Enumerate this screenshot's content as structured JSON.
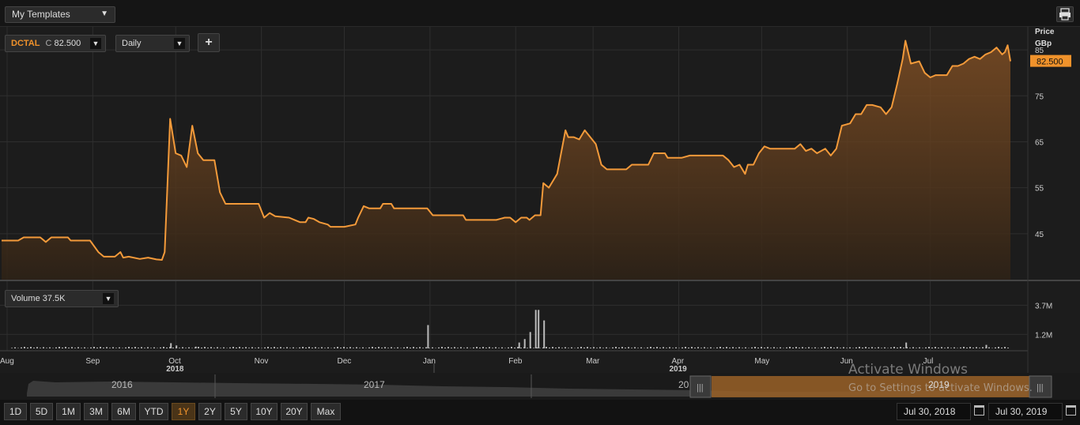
{
  "toolbar": {
    "templates_label": "My Templates",
    "symbol": "DCTAL",
    "last_prefix": "C",
    "last_value": "82.500",
    "interval": "Daily",
    "add_label": "+"
  },
  "volume_panel": {
    "label": "Volume",
    "value": "37.5K"
  },
  "colors": {
    "accent": "#f0922b",
    "line": "#f39a3a",
    "background": "#1c1c1c",
    "grid": "#2e2e2e",
    "volume_bar": "#bbbbbb"
  },
  "icons": {
    "print": "printer-icon",
    "calendar": "calendar-icon",
    "caret": "caret-down-icon",
    "grip": "grip-icon"
  },
  "range_buttons": [
    "1D",
    "5D",
    "1M",
    "3M",
    "6M",
    "YTD",
    "1Y",
    "2Y",
    "5Y",
    "10Y",
    "20Y",
    "Max"
  ],
  "active_range": "1Y",
  "date_from": "Jul 30, 2018",
  "date_to": "Jul 30, 2019",
  "navigator_years": [
    "2016",
    "2017",
    "20",
    "2019"
  ],
  "watermark": {
    "line1": "Activate Windows",
    "line2": "Go to Settings to activate Windows."
  },
  "chart_data": {
    "type": "line",
    "price_axis_title": "Price",
    "price_axis_unit": "GBp",
    "y_ticks": [
      45,
      55,
      65,
      75,
      85
    ],
    "ylim": [
      35,
      90
    ],
    "current_price_label": "82.500",
    "current_price": 82.5,
    "x_start": "2018-07-30",
    "x_end": "2019-07-30",
    "month_ticks": [
      {
        "label": "Aug",
        "date": "2018-08-01"
      },
      {
        "label": "Sep",
        "date": "2018-09-01"
      },
      {
        "label": "Oct",
        "date": "2018-10-01",
        "year": "2018"
      },
      {
        "label": "Nov",
        "date": "2018-11-01"
      },
      {
        "label": "Dec",
        "date": "2018-12-01"
      },
      {
        "label": "Jan",
        "date": "2019-01-01"
      },
      {
        "label": "Feb",
        "date": "2019-02-01"
      },
      {
        "label": "Mar",
        "date": "2019-03-01"
      },
      {
        "label": "Apr",
        "date": "2019-04-01",
        "year": "2019"
      },
      {
        "label": "May",
        "date": "2019-05-01"
      },
      {
        "label": "Jun",
        "date": "2019-06-01"
      },
      {
        "label": "Jul",
        "date": "2019-07-01"
      }
    ],
    "series": [
      {
        "points": [
          [
            "2018-07-30",
            43.5
          ],
          [
            "2018-08-05",
            43.5
          ],
          [
            "2018-08-07",
            44.2
          ],
          [
            "2018-08-13",
            44.2
          ],
          [
            "2018-08-15",
            43.2
          ],
          [
            "2018-08-17",
            44.2
          ],
          [
            "2018-08-23",
            44.2
          ],
          [
            "2018-08-24",
            43.5
          ],
          [
            "2018-08-31",
            43.5
          ],
          [
            "2018-09-03",
            41.0
          ],
          [
            "2018-09-05",
            40.0
          ],
          [
            "2018-09-09",
            40.0
          ],
          [
            "2018-09-11",
            41.0
          ],
          [
            "2018-09-12",
            39.8
          ],
          [
            "2018-09-14",
            40.0
          ],
          [
            "2018-09-18",
            39.5
          ],
          [
            "2018-09-21",
            39.8
          ],
          [
            "2018-09-24",
            39.4
          ],
          [
            "2018-09-26",
            39.3
          ],
          [
            "2018-09-27",
            41.0
          ],
          [
            "2018-09-29",
            70.0
          ],
          [
            "2018-10-01",
            62.5
          ],
          [
            "2018-10-03",
            62.0
          ],
          [
            "2018-10-05",
            59.5
          ],
          [
            "2018-10-07",
            68.5
          ],
          [
            "2018-10-09",
            62.5
          ],
          [
            "2018-10-11",
            61.0
          ],
          [
            "2018-10-15",
            61.0
          ],
          [
            "2018-10-17",
            54.0
          ],
          [
            "2018-10-19",
            51.5
          ],
          [
            "2018-10-31",
            51.5
          ],
          [
            "2018-11-02",
            48.5
          ],
          [
            "2018-11-04",
            49.5
          ],
          [
            "2018-11-06",
            48.8
          ],
          [
            "2018-11-11",
            48.5
          ],
          [
            "2018-11-13",
            48.0
          ],
          [
            "2018-11-15",
            47.5
          ],
          [
            "2018-11-17",
            47.5
          ],
          [
            "2018-11-18",
            48.5
          ],
          [
            "2018-11-20",
            48.2
          ],
          [
            "2018-11-22",
            47.5
          ],
          [
            "2018-11-25",
            47.0
          ],
          [
            "2018-11-26",
            46.5
          ],
          [
            "2018-12-01",
            46.5
          ],
          [
            "2018-12-05",
            47.0
          ],
          [
            "2018-12-06",
            48.5
          ],
          [
            "2018-12-08",
            51.0
          ],
          [
            "2018-12-10",
            50.5
          ],
          [
            "2018-12-14",
            50.5
          ],
          [
            "2018-12-15",
            51.5
          ],
          [
            "2018-12-18",
            51.5
          ],
          [
            "2018-12-19",
            50.5
          ],
          [
            "2018-12-31",
            50.5
          ],
          [
            "2019-01-02",
            49.0
          ],
          [
            "2019-01-13",
            49.0
          ],
          [
            "2019-01-14",
            48.0
          ],
          [
            "2019-01-25",
            48.0
          ],
          [
            "2019-01-28",
            48.5
          ],
          [
            "2019-01-30",
            48.5
          ],
          [
            "2019-02-01",
            47.5
          ],
          [
            "2019-02-03",
            48.5
          ],
          [
            "2019-02-05",
            48.5
          ],
          [
            "2019-02-06",
            48.0
          ],
          [
            "2019-02-08",
            49.0
          ],
          [
            "2019-02-10",
            49.0
          ],
          [
            "2019-02-11",
            56.0
          ],
          [
            "2019-02-13",
            55.0
          ],
          [
            "2019-02-16",
            58.0
          ],
          [
            "2019-02-19",
            67.5
          ],
          [
            "2019-02-20",
            66.0
          ],
          [
            "2019-02-22",
            66.0
          ],
          [
            "2019-02-24",
            65.5
          ],
          [
            "2019-02-26",
            67.5
          ],
          [
            "2019-02-28",
            66.0
          ],
          [
            "2019-03-02",
            64.5
          ],
          [
            "2019-03-04",
            60.0
          ],
          [
            "2019-03-06",
            59.0
          ],
          [
            "2019-03-13",
            59.0
          ],
          [
            "2019-03-15",
            60.0
          ],
          [
            "2019-03-21",
            60.0
          ],
          [
            "2019-03-23",
            62.5
          ],
          [
            "2019-03-27",
            62.5
          ],
          [
            "2019-03-28",
            61.5
          ],
          [
            "2019-04-02",
            61.5
          ],
          [
            "2019-04-05",
            62.0
          ],
          [
            "2019-04-17",
            62.0
          ],
          [
            "2019-04-19",
            61.0
          ],
          [
            "2019-04-21",
            59.5
          ],
          [
            "2019-04-23",
            60.0
          ],
          [
            "2019-04-25",
            58.0
          ],
          [
            "2019-04-26",
            60.0
          ],
          [
            "2019-04-28",
            60.0
          ],
          [
            "2019-04-30",
            62.5
          ],
          [
            "2019-05-02",
            64.0
          ],
          [
            "2019-05-04",
            63.5
          ],
          [
            "2019-05-13",
            63.5
          ],
          [
            "2019-05-15",
            64.5
          ],
          [
            "2019-05-17",
            63.0
          ],
          [
            "2019-05-19",
            63.5
          ],
          [
            "2019-05-21",
            62.5
          ],
          [
            "2019-05-24",
            63.5
          ],
          [
            "2019-05-26",
            62.0
          ],
          [
            "2019-05-28",
            63.5
          ],
          [
            "2019-05-30",
            68.5
          ],
          [
            "2019-06-02",
            69.0
          ],
          [
            "2019-06-04",
            71.0
          ],
          [
            "2019-06-06",
            71.0
          ],
          [
            "2019-06-08",
            73.0
          ],
          [
            "2019-06-10",
            73.0
          ],
          [
            "2019-06-13",
            72.5
          ],
          [
            "2019-06-15",
            71.0
          ],
          [
            "2019-06-17",
            72.5
          ],
          [
            "2019-06-19",
            77.5
          ],
          [
            "2019-06-21",
            83.0
          ],
          [
            "2019-06-22",
            87.0
          ],
          [
            "2019-06-24",
            82.0
          ],
          [
            "2019-06-27",
            82.5
          ],
          [
            "2019-06-29",
            80.0
          ],
          [
            "2019-07-01",
            79.0
          ],
          [
            "2019-07-03",
            79.5
          ],
          [
            "2019-07-07",
            79.5
          ],
          [
            "2019-07-09",
            81.5
          ],
          [
            "2019-07-11",
            81.5
          ],
          [
            "2019-07-13",
            82.0
          ],
          [
            "2019-07-15",
            83.0
          ],
          [
            "2019-07-17",
            83.5
          ],
          [
            "2019-07-19",
            83.0
          ],
          [
            "2019-07-21",
            84.0
          ],
          [
            "2019-07-23",
            84.5
          ],
          [
            "2019-07-25",
            85.5
          ],
          [
            "2019-07-27",
            84.0
          ],
          [
            "2019-07-28",
            84.5
          ],
          [
            "2019-07-29",
            86.0
          ],
          [
            "2019-07-30",
            82.5
          ]
        ]
      }
    ],
    "volume": {
      "label": "Volume",
      "y_ticks": [
        "1.2M",
        "3.7M"
      ],
      "y_tick_values": [
        1.2,
        3.7
      ],
      "ymax": 4.2
    }
  }
}
